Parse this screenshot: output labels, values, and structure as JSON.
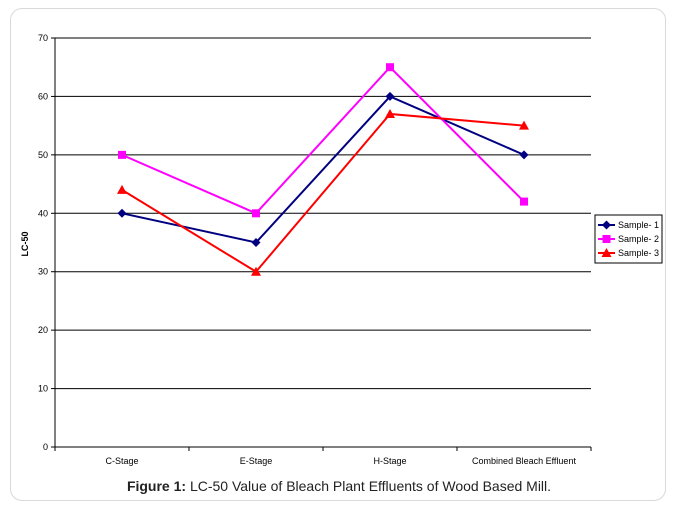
{
  "caption": {
    "label": "Figure 1:",
    "text": " LC-50 Value of Bleach Plant Effluents of Wood Based Mill."
  },
  "chart_data": {
    "type": "line",
    "title": "",
    "xlabel": "",
    "ylabel": "LC-50",
    "ylim": [
      0,
      70
    ],
    "ytick_step": 10,
    "grid": "horizontal",
    "legend_position": "right",
    "categories": [
      "C-Stage",
      "E-Stage",
      "H-Stage",
      "Combined Bleach Effluent"
    ],
    "series": [
      {
        "name": "Sample- 1",
        "values": [
          40,
          35,
          60,
          50
        ],
        "color": "#000080",
        "marker": "diamond"
      },
      {
        "name": "Sample- 2",
        "values": [
          50,
          40,
          65,
          42
        ],
        "color": "#ff00ff",
        "marker": "square"
      },
      {
        "name": "Sample- 3",
        "values": [
          44,
          30,
          57,
          55
        ],
        "color": "#ff0000",
        "marker": "triangle"
      }
    ]
  }
}
